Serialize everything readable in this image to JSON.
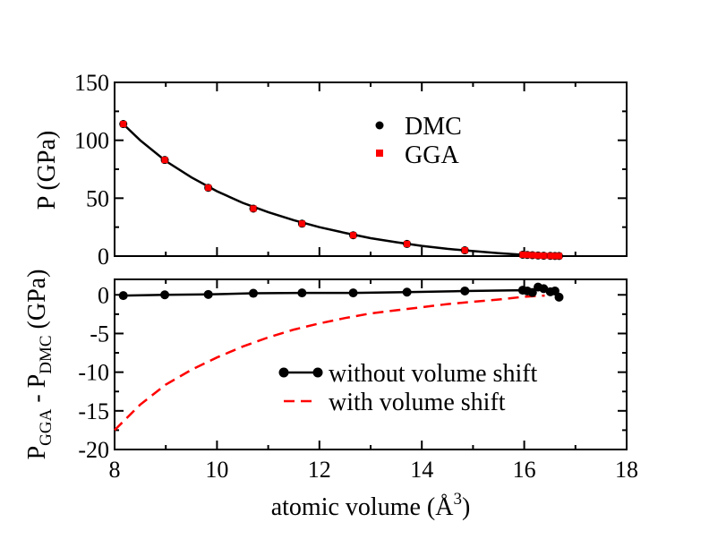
{
  "chart_data": [
    {
      "type": "scatter",
      "panel": "top",
      "ylabel": "P (GPa)",
      "xlim": [
        8,
        18
      ],
      "ylim": [
        0,
        150
      ],
      "yticks": [
        0,
        50,
        100,
        150
      ],
      "ytick_labels": [
        "0",
        "50",
        "100",
        "150"
      ],
      "legend": [
        "DMC",
        "GGA"
      ],
      "legend_position": "top-right",
      "series": [
        {
          "name": "DMC",
          "marker": "circle",
          "color": "#000000",
          "x": [
            8.17,
            8.98,
            9.83,
            10.71,
            11.66,
            12.66,
            13.71,
            14.84,
            15.97,
            16.06,
            16.16,
            16.27,
            16.38,
            16.51,
            16.6,
            16.68
          ],
          "y": [
            114,
            83,
            59,
            41,
            28,
            18,
            10.5,
            5,
            1.2,
            1.0,
            0.8,
            0.5,
            0.3,
            0.2,
            0.1,
            0.1
          ]
        },
        {
          "name": "GGA",
          "marker": "square",
          "color": "#ff0000",
          "x": [
            8.17,
            8.98,
            9.83,
            10.71,
            11.66,
            12.66,
            13.71,
            14.84,
            15.97,
            16.06,
            16.16,
            16.27,
            16.38,
            16.51,
            16.6,
            16.68
          ],
          "y": [
            114,
            83,
            59,
            41,
            28,
            18,
            10.5,
            5,
            1.2,
            1.0,
            0.8,
            0.5,
            0.3,
            0.2,
            0.1,
            0.1
          ]
        },
        {
          "name": "fit",
          "style": "solid-line",
          "color": "#000000",
          "x": [
            8.17,
            8.5,
            9.0,
            9.5,
            10.0,
            10.5,
            11.0,
            11.5,
            12.0,
            12.5,
            13.0,
            13.5,
            14.0,
            14.5,
            15.0,
            15.5,
            16.0,
            16.3,
            16.65
          ],
          "y": [
            114,
            100,
            82,
            68,
            56,
            46,
            38,
            31,
            25,
            20,
            15.5,
            12,
            8.8,
            6.3,
            4.3,
            2.5,
            1.1,
            0.5,
            0
          ]
        }
      ]
    },
    {
      "type": "line",
      "panel": "bottom",
      "xlabel_parts": [
        "atomic volume (Å",
        "3",
        ")"
      ],
      "ylabel_parts": [
        "P",
        "GGA",
        " - P",
        "DMC",
        " (GPa)"
      ],
      "xlim": [
        8,
        18
      ],
      "ylim": [
        -20,
        2
      ],
      "xticks": [
        8,
        10,
        12,
        14,
        16,
        18
      ],
      "xtick_labels": [
        "8",
        "10",
        "12",
        "14",
        "16",
        "18"
      ],
      "yticks": [
        -20,
        -15,
        -10,
        -5,
        0
      ],
      "ytick_labels": [
        "-20",
        "-15",
        "-10",
        "-5",
        "0"
      ],
      "legend": [
        "without volume shift",
        "with volume shift"
      ],
      "legend_position": "lower-right",
      "series": [
        {
          "name": "without volume shift",
          "style": "solid-line-circles",
          "color": "#000000",
          "x": [
            8.17,
            8.98,
            9.83,
            10.71,
            11.66,
            12.66,
            13.71,
            14.84,
            15.97,
            16.06,
            16.16,
            16.27,
            16.38,
            16.51,
            16.6,
            16.68
          ],
          "y": [
            -0.1,
            0.0,
            0.05,
            0.2,
            0.25,
            0.25,
            0.35,
            0.5,
            0.6,
            0.5,
            0.3,
            1.0,
            0.8,
            0.4,
            0.5,
            -0.3
          ]
        },
        {
          "name": "with volume shift",
          "style": "dashed-line",
          "color": "#ff0000",
          "x": [
            8.0,
            8.5,
            9.0,
            9.5,
            10.0,
            10.5,
            11.0,
            11.5,
            12.0,
            12.5,
            13.0,
            13.5,
            14.0,
            14.5,
            15.0,
            15.5,
            16.0,
            16.4
          ],
          "y": [
            -17.5,
            -14.2,
            -11.6,
            -9.7,
            -8.1,
            -6.7,
            -5.5,
            -4.5,
            -3.7,
            -3.0,
            -2.4,
            -2.0,
            -1.6,
            -1.2,
            -0.9,
            -0.6,
            -0.25,
            -0.1
          ]
        }
      ]
    }
  ]
}
